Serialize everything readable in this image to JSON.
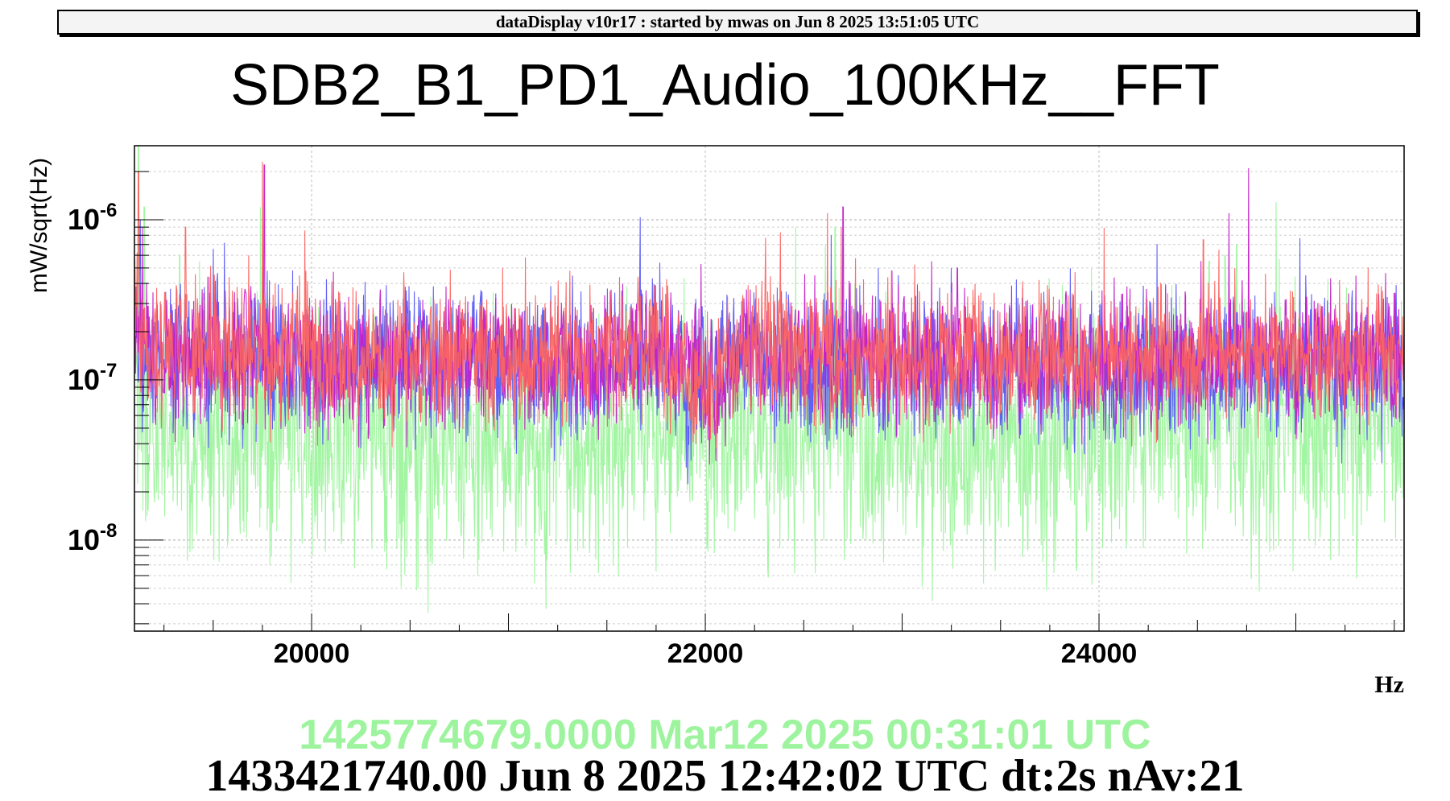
{
  "header": {
    "banner": "dataDisplay v10r17 : started by mwas on Jun  8 2025 13:51:05 UTC"
  },
  "footer": {
    "reference_time": "1425774679.0000 Mar12 2025 00:31:01 UTC",
    "current_time": "1433421740.00 Jun 8 2025 12:42:02 UTC dt:2s nAv:21"
  },
  "chart_data": {
    "type": "line",
    "title": "SDB2_B1_PD1_Audio_100KHz__FFT",
    "xlabel": "Hz",
    "ylabel": "mW/sqrt(Hz)",
    "xlim": [
      19100,
      25550
    ],
    "ylim": [
      2.7e-09,
      2.9e-06
    ],
    "yscale": "log",
    "grid": true,
    "x_ticks": [
      20000,
      22000,
      24000
    ],
    "y_ticks": [
      {
        "value": 1e-08,
        "base": "10",
        "exp": "-8"
      },
      {
        "value": 1e-07,
        "base": "10",
        "exp": "-7"
      },
      {
        "value": 1e-06,
        "base": "10",
        "exp": "-6"
      }
    ],
    "series": [
      {
        "color": "#9ef49e",
        "noise": 0.38,
        "baseline": [
          [
            19100,
            2.2e-07
          ],
          [
            19130,
            6e-08
          ],
          [
            19200,
            4.4e-08
          ],
          [
            19600,
            4.3e-08
          ],
          [
            20000,
            4.1e-08
          ],
          [
            20800,
            3.8e-08
          ],
          [
            21400,
            3.5e-08
          ],
          [
            21650,
            4.5e-08
          ],
          [
            21780,
            6.2e-08
          ],
          [
            21900,
            4.6e-08
          ],
          [
            22300,
            4.2e-08
          ],
          [
            22590,
            4e-08
          ],
          [
            22640,
            7.5e-08
          ],
          [
            22700,
            4.5e-08
          ],
          [
            23200,
            4.2e-08
          ],
          [
            23800,
            4e-08
          ],
          [
            24050,
            4.1e-08
          ],
          [
            24300,
            5.6e-08
          ],
          [
            24500,
            5e-08
          ],
          [
            24800,
            4.4e-08
          ],
          [
            25000,
            4.6e-08
          ],
          [
            25550,
            5.2e-08
          ]
        ],
        "peaks": [
          [
            19120,
            2.9e-06
          ],
          [
            19150,
            1.2e-06
          ],
          [
            19330,
            6e-07
          ],
          [
            19430,
            5.5e-07
          ],
          [
            19700,
            2.5e-07
          ],
          [
            19740,
            1.2e-06
          ],
          [
            19770,
            3e-07
          ],
          [
            19980,
            2.2e-07
          ],
          [
            20520,
            2.5e-07
          ],
          [
            20950,
            2e-07
          ],
          [
            21020,
            2.1e-07
          ],
          [
            21460,
            2.6e-07
          ],
          [
            21600,
            1.9e-07
          ],
          [
            22610,
            7e-07
          ],
          [
            22660,
            9e-07
          ],
          [
            22700,
            8e-07
          ],
          [
            22760,
            4e-07
          ],
          [
            23500,
            2.3e-07
          ],
          [
            24380,
            2.8e-07
          ],
          [
            24560,
            5.5e-07
          ],
          [
            24640,
            6e-07
          ],
          [
            24700,
            7e-07
          ],
          [
            24900,
            2.2e-07
          ]
        ]
      },
      {
        "color": "#5a5af5",
        "noise": 0.22,
        "baseline": [
          [
            19100,
            3.5e-07
          ],
          [
            19130,
            1.5e-07
          ],
          [
            19600,
            1.3e-07
          ],
          [
            20000,
            1.3e-07
          ],
          [
            20800,
            1.2e-07
          ],
          [
            21500,
            1.2e-07
          ],
          [
            21750,
            1.4e-07
          ],
          [
            21880,
            1.2e-07
          ],
          [
            21910,
            6e-08
          ],
          [
            21940,
            9e-08
          ],
          [
            22050,
            1.3e-07
          ],
          [
            22400,
            1.4e-07
          ],
          [
            22580,
            1.2e-07
          ],
          [
            23200,
            1.2e-07
          ],
          [
            24000,
            1.2e-07
          ],
          [
            24700,
            1.25e-07
          ],
          [
            25550,
            1.3e-07
          ]
        ],
        "peaks": [
          [
            19130,
            1e-06
          ],
          [
            19750,
            5e-07
          ],
          [
            20400,
            2.4e-07
          ],
          [
            22640,
            8e-07
          ],
          [
            23250,
            5e-07
          ],
          [
            25050,
            4.5e-07
          ]
        ]
      },
      {
        "color": "#c41ec8",
        "noise": 0.2,
        "baseline": [
          [
            19100,
            3.5e-07
          ],
          [
            19130,
            1.5e-07
          ],
          [
            19600,
            1.4e-07
          ],
          [
            20000,
            1.35e-07
          ],
          [
            20800,
            1.3e-07
          ],
          [
            21500,
            1.3e-07
          ],
          [
            21800,
            1.55e-07
          ],
          [
            21900,
            1.3e-07
          ],
          [
            22000,
            8.5e-08
          ],
          [
            22100,
            1.05e-07
          ],
          [
            22200,
            1.4e-07
          ],
          [
            22500,
            1.35e-07
          ],
          [
            23200,
            1.3e-07
          ],
          [
            24000,
            1.3e-07
          ],
          [
            24700,
            1.35e-07
          ],
          [
            25550,
            1.4e-07
          ]
        ],
        "peaks": [
          [
            19140,
            9e-07
          ],
          [
            19760,
            2.2e-06
          ],
          [
            21000,
            2.5e-07
          ],
          [
            22700,
            1.2e-06
          ],
          [
            23150,
            5.5e-07
          ],
          [
            23280,
            5e-07
          ],
          [
            24660,
            1.1e-06
          ],
          [
            24760,
            2.1e-06
          ]
        ]
      },
      {
        "color": "#fb6461",
        "noise": 0.2,
        "baseline": [
          [
            19100,
            3.8e-07
          ],
          [
            19130,
            1.6e-07
          ],
          [
            19600,
            1.5e-07
          ],
          [
            20000,
            1.45e-07
          ],
          [
            20800,
            1.4e-07
          ],
          [
            21500,
            1.4e-07
          ],
          [
            21750,
            1.6e-07
          ],
          [
            21900,
            1.2e-07
          ],
          [
            21950,
            7.5e-08
          ],
          [
            22010,
            1e-07
          ],
          [
            22100,
            1.5e-07
          ],
          [
            22300,
            1.6e-07
          ],
          [
            22500,
            1.4e-07
          ],
          [
            23200,
            1.35e-07
          ],
          [
            24000,
            1.35e-07
          ],
          [
            24700,
            1.45e-07
          ],
          [
            25550,
            1.5e-07
          ]
        ],
        "peaks": [
          [
            19120,
            2e-06
          ],
          [
            19360,
            9e-07
          ],
          [
            19680,
            6e-07
          ],
          [
            19750,
            2.3e-06
          ],
          [
            20470,
            3.5e-07
          ],
          [
            20970,
            5e-07
          ],
          [
            21430,
            2.8e-07
          ],
          [
            22620,
            1.1e-06
          ],
          [
            22690,
            9e-07
          ],
          [
            23400,
            3.5e-07
          ],
          [
            24530,
            7.5e-07
          ],
          [
            24610,
            6.5e-07
          ],
          [
            24690,
            5e-07
          ]
        ]
      }
    ]
  }
}
